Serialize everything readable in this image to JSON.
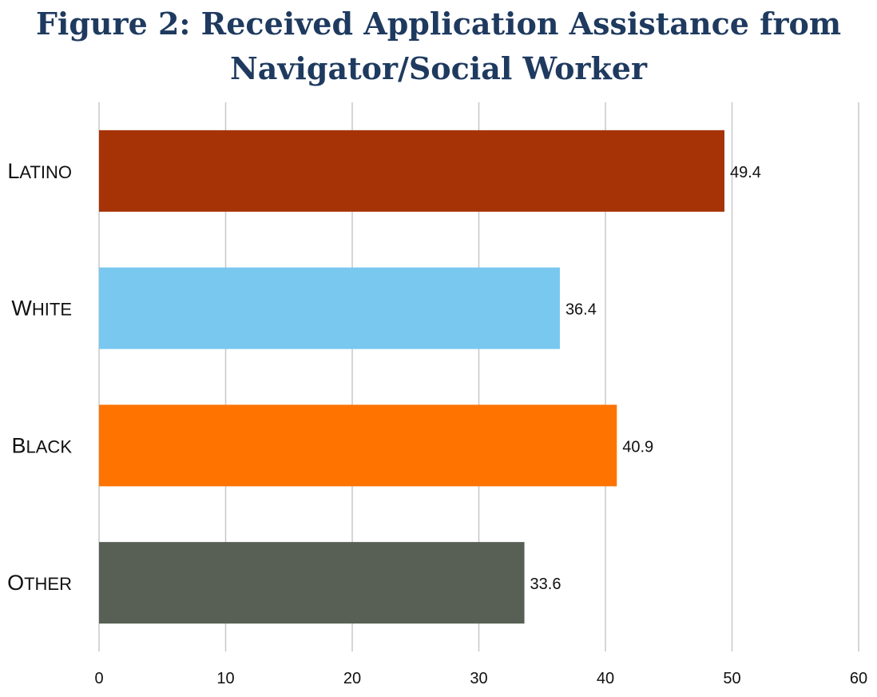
{
  "chart_data": {
    "type": "bar",
    "orientation": "horizontal",
    "title": "Figure 2: Received Application Assistance from Navigator/Social Worker",
    "title_lines": [
      "Figure 2: Received Application Assistance from",
      "Navigator/Social Worker"
    ],
    "categories": [
      "Latino",
      "White",
      "Black",
      "Other"
    ],
    "values": [
      49.4,
      36.4,
      40.9,
      33.6
    ],
    "data_labels": [
      "49.4",
      "36.4",
      "40.9",
      "33.6"
    ],
    "colors": [
      "#a63306",
      "#79c8ef",
      "#ff7300",
      "#586056"
    ],
    "xlim": [
      0,
      60
    ],
    "xticks": [
      0,
      10,
      20,
      30,
      40,
      50,
      60
    ],
    "xlabel": "",
    "ylabel": "",
    "grid": "vertical",
    "legend": "none",
    "title_color": "#1f3a5f"
  }
}
